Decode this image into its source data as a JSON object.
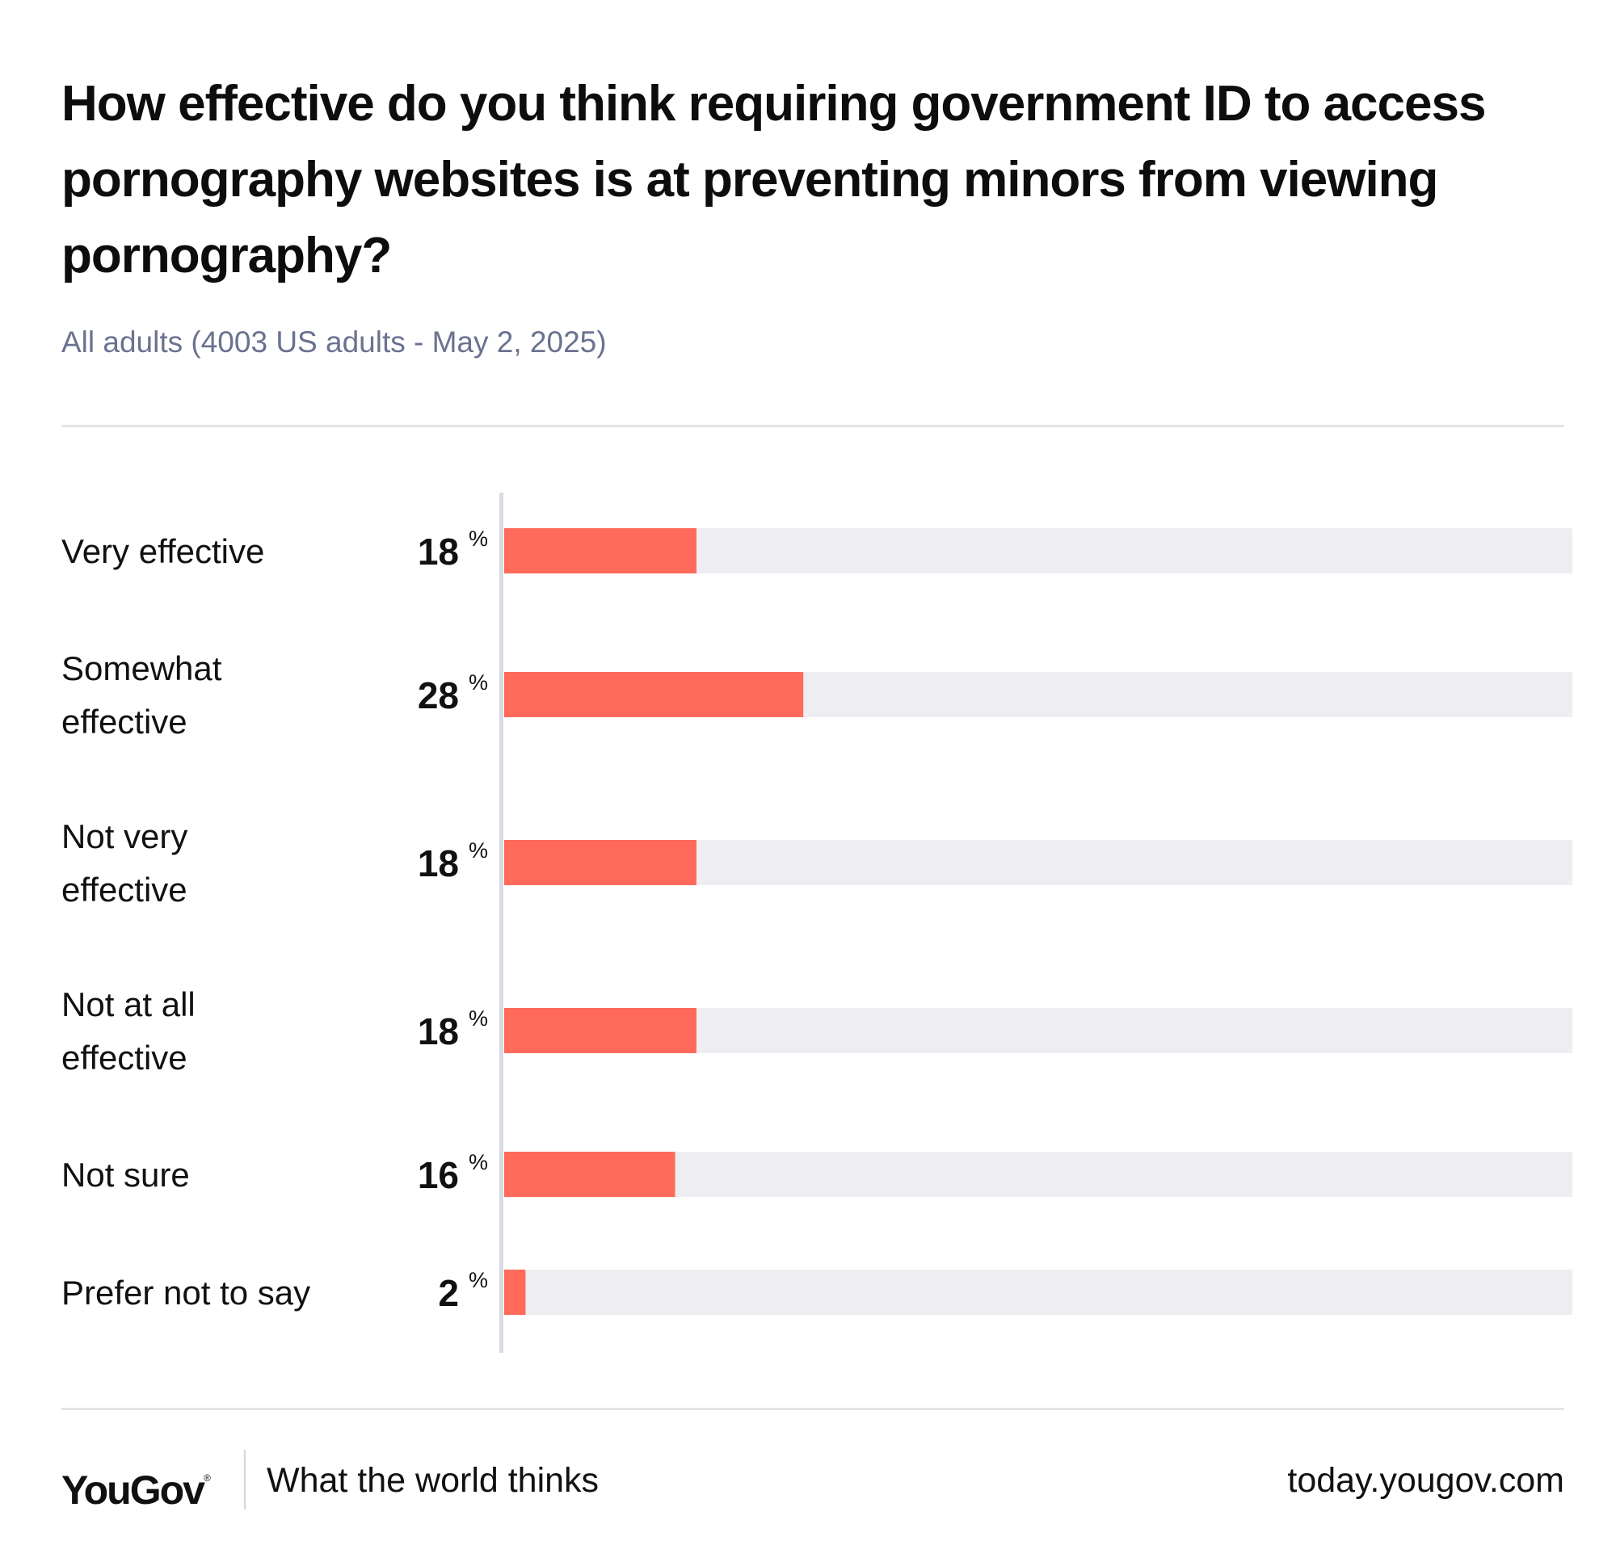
{
  "header": {
    "title": "How effective do you think requiring government ID to access pornography websites is at preventing minors from viewing pornography?",
    "subtitle": "All adults (4003 US adults - May 2, 2025)"
  },
  "colors": {
    "bar": "#ff6a5a",
    "track": "#eeeef2",
    "axis": "#d9dae3"
  },
  "chart_data": {
    "type": "bar",
    "orientation": "horizontal",
    "title": "How effective do you think requiring government ID to access pornography websites is at preventing minors from viewing pornography?",
    "subtitle": "All adults (4003 US adults - May 2, 2025)",
    "categories": [
      [
        "Very effective"
      ],
      [
        "Somewhat",
        "effective"
      ],
      [
        "Not very",
        "effective"
      ],
      [
        "Not at all",
        "effective"
      ],
      [
        "Not sure"
      ],
      [
        "Prefer not to say"
      ]
    ],
    "values": [
      18,
      28,
      18,
      18,
      16,
      2
    ],
    "value_suffix": "%",
    "xlim": [
      0,
      100
    ],
    "xlabel": "",
    "ylabel": "",
    "grid": false
  },
  "footer": {
    "logo": "YouGov",
    "logo_mark": "®",
    "tagline": "What the world thinks",
    "url": "today.yougov.com"
  }
}
